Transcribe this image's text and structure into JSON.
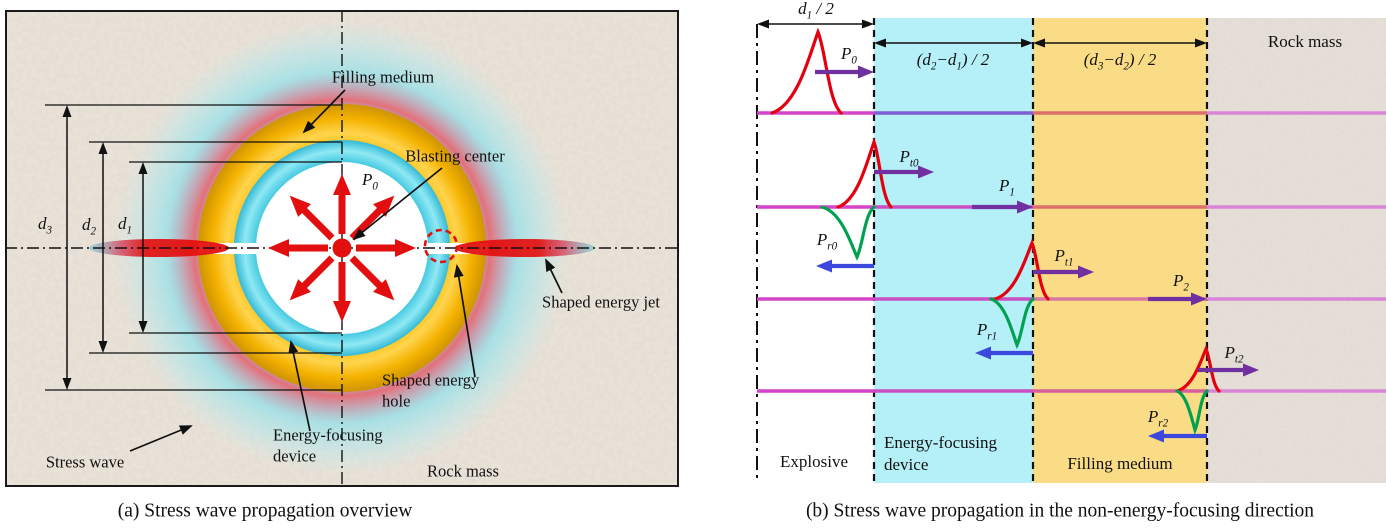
{
  "figure": {
    "panel_a": {
      "caption": "(a) Stress wave propagation overview",
      "annotations": {
        "filling_medium": "Filling medium",
        "blasting_center": "Blasting center",
        "shaped_energy_jet": "Shaped energy jet",
        "shaped_energy_hole_line1": "Shaped energy",
        "shaped_energy_hole_line2": "hole",
        "energy_focusing_line1": "Energy-focusing",
        "energy_focusing_line2": "device",
        "stress_wave": "Stress wave",
        "rock_mass": "Rock mass",
        "p0": "P_[0]",
        "d1": "d_[1]",
        "d2": "d_[2]",
        "d3": "d_[3]"
      }
    },
    "panel_b": {
      "caption": "(b) Stress wave propagation in the non-energy-focusing direction",
      "dimensions": {
        "d1_half": "d_[1] / 2",
        "d2_d1_half": "(d_[2]−d_[1]) / 2",
        "d3_d2_half": "(d_[3]−d_[2]) / 2"
      },
      "regions": {
        "explosive": "Explosive",
        "energy_focusing_line1": "Energy-focusing",
        "energy_focusing_line2": "device",
        "filling_medium": "Filling medium",
        "rock_mass": "Rock mass"
      },
      "waves": {
        "p0": "P_[0]",
        "pt0": "P_[t0]",
        "pr0": "P_[r0]",
        "p1": "P_[1]",
        "pt1": "P_[t1]",
        "pr1": "P_[r1]",
        "p2": "P_[2]",
        "pt2": "P_[t2]",
        "pr2": "P_[r2]"
      }
    },
    "colors": {
      "energy_focusing_fill": "#b5eff7",
      "filling_medium_fill": "#fadc87",
      "rock_fill": "#e7e1da",
      "incident_wave_red": "#e4000f",
      "reflected_wave_green": "#00a24f",
      "transmitted_arrow_purple": "#7030a0",
      "reflected_arrow_blue": "#3c48dd",
      "baseline_magenta": "#cc44cc"
    }
  }
}
